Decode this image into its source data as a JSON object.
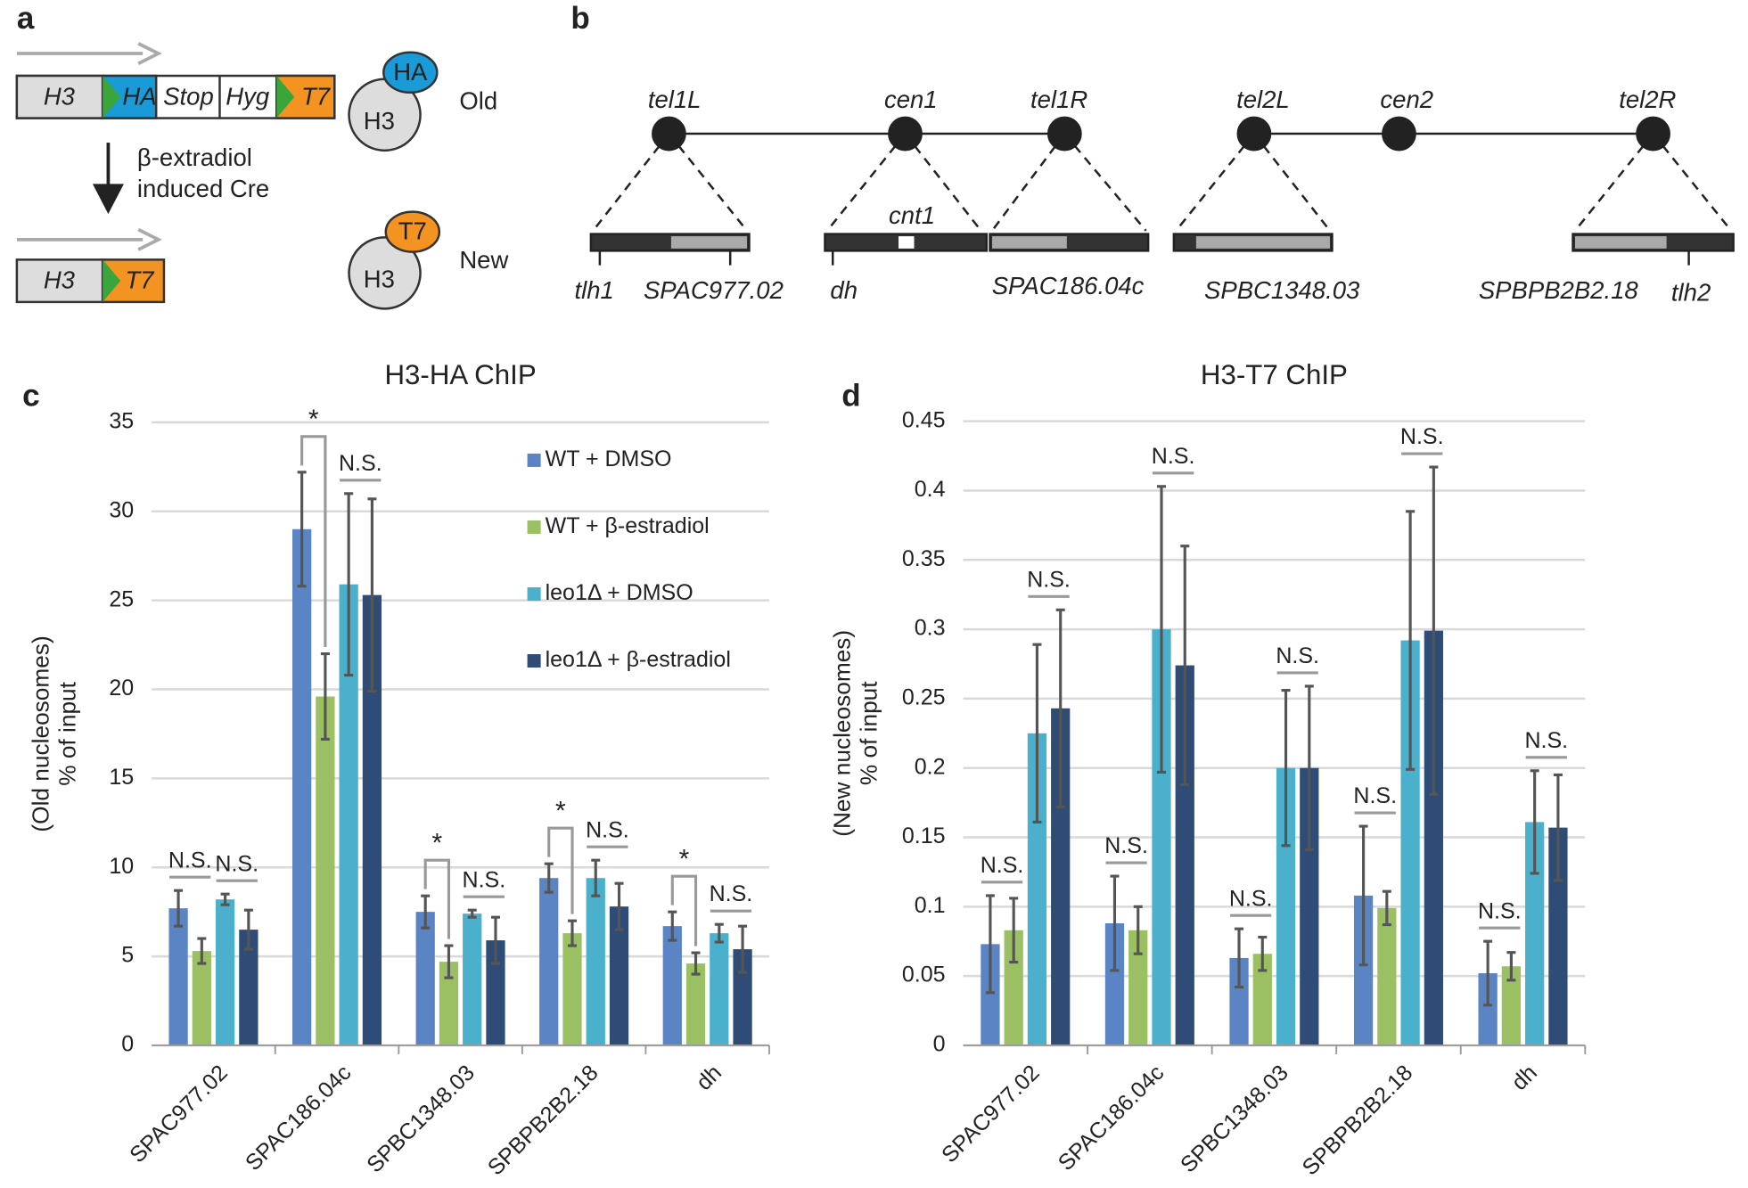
{
  "panel_labels": [
    "a",
    "b",
    "c",
    "d"
  ],
  "diagram_a": {
    "old_construct": [
      "H3",
      "HA",
      "Stop",
      "Hyg",
      "T7"
    ],
    "old_protein": {
      "core": "H3",
      "tag": "HA",
      "label": "Old"
    },
    "treatment": [
      "β-extradiol",
      "induced Cre"
    ],
    "new_construct": [
      "H3",
      "T7"
    ],
    "new_protein": {
      "core": "H3",
      "tag": "T7",
      "label": "New"
    }
  },
  "diagram_b": {
    "nodes": [
      "tel1L",
      "cen1",
      "tel1R",
      "tel2L",
      "cen2",
      "tel2R"
    ],
    "region": "cnt1",
    "loci": [
      "tlh1",
      "SPAC977.02",
      "dh",
      "SPAC186.04c",
      "SPBC1348.03",
      "SPBPB2B2.18",
      "tlh2"
    ]
  },
  "chart_data": [
    {
      "type": "bar",
      "title": "H3-HA ChIP",
      "ylabel": [
        "(Old nucleosomes)",
        "% of input"
      ],
      "categories": [
        "SPAC977.02",
        "SPAC186.04c",
        "SPBC1348.03",
        "SPBPB2B2.18",
        "dh"
      ],
      "series": [
        {
          "name": "WT + DMSO",
          "color": "#5b84c4",
          "values": [
            7.7,
            29.0,
            7.5,
            9.4,
            6.7
          ],
          "errors": [
            1.0,
            3.2,
            0.9,
            0.8,
            0.8
          ]
        },
        {
          "name": "WT + β-estradiol",
          "color": "#9bc063",
          "values": [
            5.3,
            19.6,
            4.7,
            6.3,
            4.6
          ],
          "errors": [
            0.7,
            2.4,
            0.9,
            0.7,
            0.6
          ]
        },
        {
          "name": "leo1Δ + DMSO",
          "color": "#4bb0cb",
          "values": [
            8.2,
            25.9,
            7.4,
            9.4,
            6.3
          ],
          "errors": [
            0.3,
            5.1,
            0.2,
            1.0,
            0.5
          ]
        },
        {
          "name": "leo1Δ + β-estradiol",
          "color": "#2e4c75",
          "values": [
            6.5,
            25.3,
            5.9,
            7.8,
            5.4
          ],
          "errors": [
            1.1,
            5.4,
            1.3,
            1.3,
            1.3
          ]
        }
      ],
      "significance": [
        [
          "N.S.",
          "N.S."
        ],
        [
          "*",
          "N.S."
        ],
        [
          "*",
          "N.S."
        ],
        [
          "*",
          "N.S."
        ],
        [
          "*",
          "N.S."
        ]
      ],
      "ylim": [
        0,
        35
      ],
      "yticks": [
        0,
        5,
        10,
        15,
        20,
        25,
        30,
        35
      ],
      "grid": true,
      "legend": "upper right"
    },
    {
      "type": "bar",
      "title": "H3-T7 ChIP",
      "ylabel": [
        "(New nucleosomes)",
        "% of input"
      ],
      "categories": [
        "SPAC977.02",
        "SPAC186.04c",
        "SPBC1348.03",
        "SPBPB2B2.18",
        "dh"
      ],
      "series": [
        {
          "name": "WT + DMSO",
          "color": "#5b84c4",
          "values": [
            0.073,
            0.088,
            0.063,
            0.108,
            0.052
          ],
          "errors": [
            0.035,
            0.034,
            0.021,
            0.05,
            0.023
          ]
        },
        {
          "name": "WT + β-estradiol",
          "color": "#9bc063",
          "values": [
            0.083,
            0.083,
            0.066,
            0.099,
            0.057
          ],
          "errors": [
            0.023,
            0.017,
            0.012,
            0.012,
            0.01
          ]
        },
        {
          "name": "leo1Δ + DMSO",
          "color": "#4bb0cb",
          "values": [
            0.225,
            0.3,
            0.2,
            0.292,
            0.161
          ],
          "errors": [
            0.064,
            0.103,
            0.056,
            0.093,
            0.037
          ]
        },
        {
          "name": "leo1Δ + β-estradiol",
          "color": "#2e4c75",
          "values": [
            0.243,
            0.274,
            0.2,
            0.299,
            0.157
          ],
          "errors": [
            0.071,
            0.086,
            0.059,
            0.118,
            0.038
          ]
        }
      ],
      "significance": [
        [
          "N.S.",
          "N.S."
        ],
        [
          "N.S.",
          "N.S."
        ],
        [
          "N.S.",
          "N.S."
        ],
        [
          "N.S.",
          "N.S."
        ],
        [
          "N.S.",
          "N.S."
        ]
      ],
      "ylim": [
        0,
        0.45
      ],
      "yticks": [
        0,
        0.05,
        0.1,
        0.15,
        0.2,
        0.25,
        0.3,
        0.35,
        0.4,
        0.45
      ],
      "grid": true
    }
  ]
}
